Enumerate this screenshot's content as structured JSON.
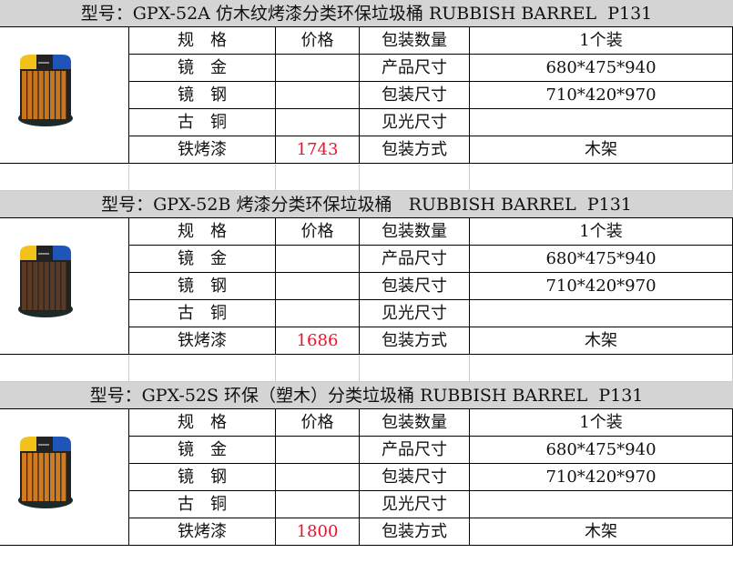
{
  "columns_header": [
    "规　格",
    "价格",
    "包装数量",
    "1个装"
  ],
  "colors": {
    "price": "#f0102a",
    "title_bg": "#d4d4d4"
  },
  "products": [
    {
      "title": "型号：GPX-52A 仿木纹烤漆分类环保垃圾桶 RUBBISH BARREL  P131",
      "image": "trash-bin-wood-orange",
      "rows": [
        [
          "规　格",
          "价格",
          "包装数量",
          "1个装"
        ],
        [
          "镜　金",
          "",
          "产品尺寸",
          "680*475*940"
        ],
        [
          "镜　钢",
          "",
          "包装尺寸",
          "710*420*970"
        ],
        [
          "古　铜",
          "",
          "见光尺寸",
          ""
        ],
        [
          "铁烤漆",
          "1743",
          "包装方式",
          "木架"
        ]
      ]
    },
    {
      "title": "型号：GPX-52B 烤漆分类环保垃圾桶   RUBBISH BARREL  P131",
      "image": "trash-bin-wood-brown",
      "rows": [
        [
          "规　格",
          "价格",
          "包装数量",
          "1个装"
        ],
        [
          "镜　金",
          "",
          "产品尺寸",
          "680*475*940"
        ],
        [
          "镜　钢",
          "",
          "包装尺寸",
          "710*420*970"
        ],
        [
          "古　铜",
          "",
          "见光尺寸",
          ""
        ],
        [
          "铁烤漆",
          "1686",
          "包装方式",
          "木架"
        ]
      ]
    },
    {
      "title": "型号：GPX-52S 环保（塑木）分类垃圾桶 RUBBISH BARREL  P131",
      "image": "trash-bin-plastic-wood-orange",
      "rows": [
        [
          "规　格",
          "价格",
          "包装数量",
          "1个装"
        ],
        [
          "镜　金",
          "",
          "产品尺寸",
          "680*475*940"
        ],
        [
          "镜　钢",
          "",
          "包装尺寸",
          "710*420*970"
        ],
        [
          "古　铜",
          "",
          "见光尺寸",
          ""
        ],
        [
          "铁烤漆",
          "1800",
          "包装方式",
          "木架"
        ]
      ]
    }
  ]
}
